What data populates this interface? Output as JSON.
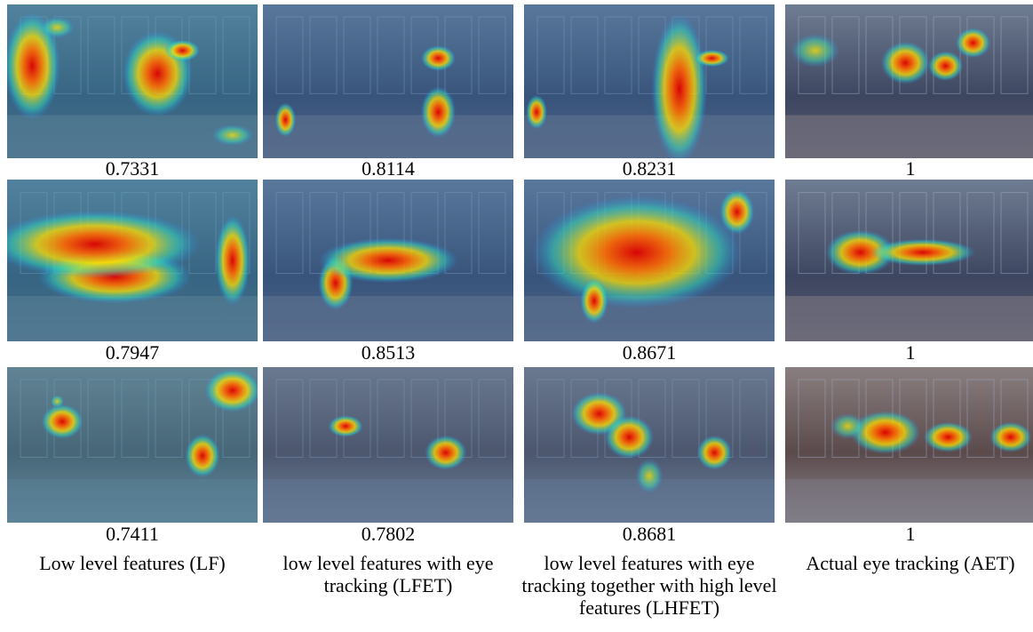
{
  "rows": [
    {
      "scores": [
        0.7331,
        0.8114,
        0.8231,
        1
      ]
    },
    {
      "scores": [
        0.7947,
        0.8513,
        0.8671,
        1
      ]
    },
    {
      "scores": [
        0.7411,
        0.7802,
        0.8681,
        1
      ]
    }
  ],
  "columns": [
    "Low level features (LF)",
    "low level features with eye tracking (LFET)",
    "low level features with eye tracking together with high level features (LHFET)",
    "Actual eye tracking (AET)"
  ]
}
